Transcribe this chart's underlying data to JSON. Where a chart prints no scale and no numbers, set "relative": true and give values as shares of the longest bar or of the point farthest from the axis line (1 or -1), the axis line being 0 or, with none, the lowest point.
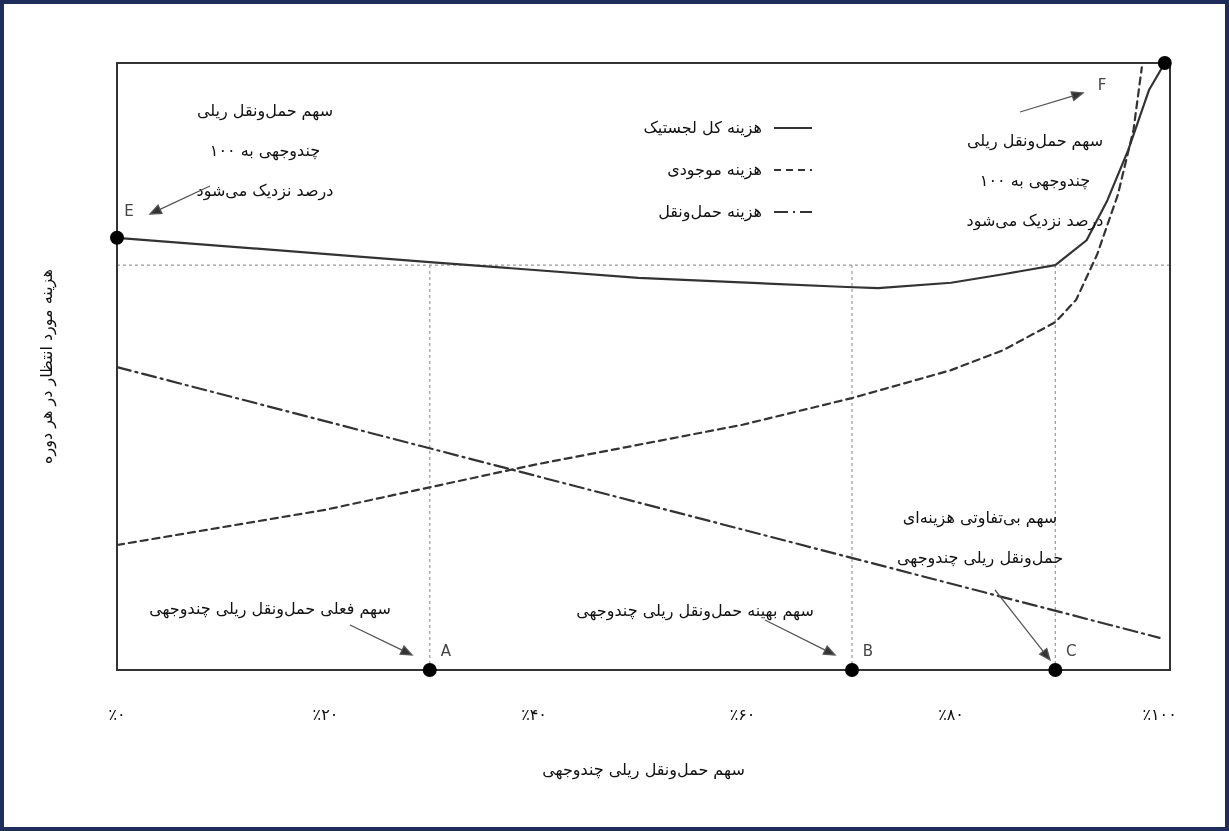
{
  "chart_data": {
    "type": "line",
    "relative": true,
    "xlabel": "سهم حمل‌ونقل ریلی چندوجهی",
    "ylabel": "هزینه مورد انتظار در هر دوره",
    "xlim": [
      0,
      101
    ],
    "xticks": [
      {
        "value": 0,
        "label": "٪۰"
      },
      {
        "value": 20,
        "label": "٪۲۰"
      },
      {
        "value": 40,
        "label": "٪۴۰"
      },
      {
        "value": 60,
        "label": "٪۶۰"
      },
      {
        "value": 80,
        "label": "٪۸۰"
      },
      {
        "value": 100,
        "label": "٪۱۰۰"
      }
    ],
    "legend": "top",
    "grid": false,
    "series": [
      {
        "name": "هزینه کل لجستیک",
        "color": "#333333",
        "line_style": "solid",
        "x": [
          0,
          30,
          50,
          70,
          73,
          80,
          85,
          90,
          93,
          95,
          97,
          99,
          100.5
        ],
        "values": [
          0.712,
          0.672,
          0.646,
          0.631,
          0.629,
          0.638,
          0.652,
          0.667,
          0.708,
          0.774,
          0.857,
          0.956,
          1
        ]
      },
      {
        "name": "هزینه موجودی",
        "color": "#333333",
        "line_style": "dashed",
        "x": [
          0,
          20,
          40,
          60,
          70.5,
          80,
          85,
          90,
          92,
          94,
          96,
          97.5,
          98.3
        ],
        "values": [
          0.206,
          0.264,
          0.338,
          0.404,
          0.448,
          0.494,
          0.527,
          0.573,
          0.61,
          0.684,
          0.783,
          0.89,
          0.993
        ]
      },
      {
        "name": "هزینه حمل‌ونقل",
        "color": "#333333",
        "line_style": "dashdot",
        "x": [
          0,
          100
        ],
        "values": [
          0.499,
          0.053
        ]
      },
      {
        "type": "scatter",
        "color": "#000000",
        "marker": "circle",
        "x": [
          0,
          100.5,
          30,
          70.5,
          90
        ],
        "values": [
          0.712,
          1,
          0,
          0,
          0
        ]
      }
    ],
    "ref_lines": [
      {
        "axis": "y",
        "value": 0.667,
        "label": null,
        "color": "#999999",
        "line_style": "dotted"
      },
      {
        "axis": "x",
        "value": 30,
        "label": null,
        "color": "#999999",
        "line_style": "dotted"
      },
      {
        "axis": "x",
        "value": 70.5,
        "label": null,
        "color": "#999999",
        "line_style": "dotted"
      },
      {
        "axis": "x",
        "value": 90,
        "label": null,
        "color": "#999999",
        "line_style": "dotted"
      }
    ],
    "annotations": [
      {
        "text": "E",
        "x": 0,
        "y": 0.712
      },
      "F",
      {
        "text": "A",
        "x": 30,
        "y": 0
      },
      {
        "text": "B",
        "x": 70.5,
        "y": 0
      },
      {
        "text": "C",
        "x": 90,
        "y": 0
      },
      "سهم حمل‌ونقل ریلی\nچندوجهی به ۱۰۰\nدرصد نزدیک می‌شود",
      "سهم حمل‌ونقل ریلی\nچندوجهی به ۱۰۰\nدرصد نزدیک می‌شود",
      "سهم فعلی حمل‌ونقل ریلی چندوجهی",
      "سهم بهینه حمل‌ونقل ریلی چندوجهی",
      "سهم بی‌تفاوتی هزینه‌ای\nحمل‌ونقل ریلی چندوجهی"
    ]
  }
}
